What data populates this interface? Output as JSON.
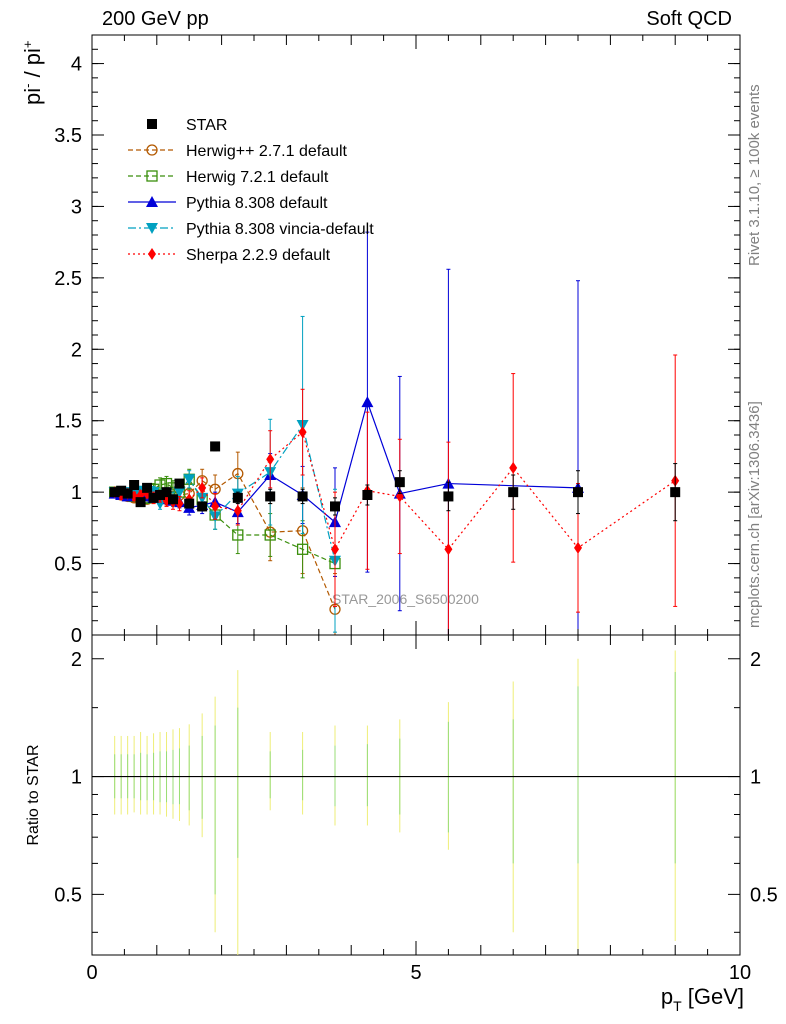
{
  "header": {
    "left": "200 GeV pp",
    "right": "Soft QCD"
  },
  "side_labels": {
    "rivet": "Rivet 3.1.10, ≥ 100k events",
    "mcplots": "mcplots.cern.ch [arXiv:1306.3436]"
  },
  "watermark": "STAR_2006_S6500200",
  "chart_data": [
    {
      "type": "scatter",
      "ylabel": "pi- / pi+",
      "xlim": [
        0,
        10
      ],
      "ylim": [
        0,
        4.2
      ],
      "yticks": [
        "0",
        "0.5",
        "1",
        "1.5",
        "2",
        "2.5",
        "3",
        "3.5",
        "4"
      ],
      "legend_position": "top-left",
      "series": [
        {
          "name": "STAR",
          "color": "#000000",
          "marker": "square-filled",
          "line": "none",
          "points": [
            [
              0.35,
              1.0
            ],
            [
              0.45,
              1.01
            ],
            [
              0.55,
              0.99
            ],
            [
              0.65,
              1.05
            ],
            [
              0.75,
              0.93
            ],
            [
              0.85,
              1.03
            ],
            [
              0.95,
              0.96
            ],
            [
              1.05,
              0.98
            ],
            [
              1.15,
              1.0
            ],
            [
              1.25,
              0.95
            ],
            [
              1.35,
              1.06
            ],
            [
              1.5,
              0.92
            ],
            [
              1.7,
              0.9
            ],
            [
              1.9,
              1.32
            ],
            [
              2.25,
              0.96
            ],
            [
              2.75,
              0.97
            ],
            [
              3.25,
              0.97
            ],
            [
              3.75,
              0.9
            ],
            [
              4.25,
              0.98
            ],
            [
              4.75,
              1.07
            ],
            [
              5.5,
              0.97
            ],
            [
              6.5,
              1.0
            ],
            [
              7.5,
              1.0
            ],
            [
              9.0,
              1.0
            ]
          ],
          "err": [
            0.02,
            0.02,
            0.02,
            0.02,
            0.02,
            0.02,
            0.02,
            0.02,
            0.02,
            0.02,
            0.02,
            0.03,
            0.03,
            0.03,
            0.04,
            0.05,
            0.05,
            0.06,
            0.07,
            0.08,
            0.1,
            0.12,
            0.15,
            0.2
          ]
        },
        {
          "name": "Herwig++ 2.7.1 default",
          "color": "#b35900",
          "marker": "circle-open",
          "line": "dashed",
          "points": [
            [
              0.35,
              1.0
            ],
            [
              0.45,
              0.98
            ],
            [
              0.55,
              0.97
            ],
            [
              0.65,
              0.96
            ],
            [
              0.75,
              0.98
            ],
            [
              0.85,
              0.95
            ],
            [
              0.95,
              0.96
            ],
            [
              1.05,
              0.97
            ],
            [
              1.15,
              0.96
            ],
            [
              1.25,
              0.97
            ],
            [
              1.35,
              0.98
            ],
            [
              1.5,
              0.99
            ],
            [
              1.7,
              1.08
            ],
            [
              1.9,
              1.02
            ],
            [
              2.25,
              1.13
            ],
            [
              2.75,
              0.72
            ],
            [
              3.25,
              0.73
            ],
            [
              3.75,
              0.18
            ]
          ],
          "err": [
            0.03,
            0.03,
            0.03,
            0.03,
            0.03,
            0.03,
            0.04,
            0.04,
            0.05,
            0.05,
            0.06,
            0.07,
            0.08,
            0.1,
            0.15,
            0.2,
            0.3,
            0.25
          ]
        },
        {
          "name": "Herwig 7.2.1 default",
          "color": "#3a8e0c",
          "marker": "square-open",
          "line": "dashed",
          "points": [
            [
              0.35,
              1.0
            ],
            [
              0.45,
              0.99
            ],
            [
              0.55,
              0.98
            ],
            [
              0.65,
              0.97
            ],
            [
              0.75,
              1.0
            ],
            [
              0.85,
              0.96
            ],
            [
              0.95,
              1.02
            ],
            [
              1.05,
              1.05
            ],
            [
              1.15,
              1.06
            ],
            [
              1.25,
              1.03
            ],
            [
              1.35,
              1.0
            ],
            [
              1.5,
              1.09
            ],
            [
              1.7,
              0.95
            ],
            [
              1.9,
              0.84
            ],
            [
              2.25,
              0.7
            ],
            [
              2.75,
              0.7
            ],
            [
              3.25,
              0.6
            ],
            [
              3.75,
              0.5
            ]
          ],
          "err": [
            0.03,
            0.03,
            0.03,
            0.03,
            0.03,
            0.04,
            0.04,
            0.05,
            0.05,
            0.05,
            0.06,
            0.07,
            0.08,
            0.1,
            0.13,
            0.15,
            0.2,
            0.3
          ]
        },
        {
          "name": "Pythia 8.308 default",
          "color": "#0000d8",
          "marker": "triangle-up-filled",
          "line": "solid",
          "points": [
            [
              0.35,
              0.99
            ],
            [
              0.45,
              0.98
            ],
            [
              0.55,
              0.97
            ],
            [
              0.65,
              0.98
            ],
            [
              0.75,
              0.99
            ],
            [
              0.85,
              0.97
            ],
            [
              0.95,
              0.96
            ],
            [
              1.05,
              0.97
            ],
            [
              1.15,
              0.95
            ],
            [
              1.25,
              0.94
            ],
            [
              1.35,
              0.93
            ],
            [
              1.5,
              0.89
            ],
            [
              1.7,
              0.91
            ],
            [
              1.9,
              0.93
            ],
            [
              2.25,
              0.86
            ],
            [
              2.75,
              1.12
            ],
            [
              3.25,
              0.98
            ],
            [
              3.75,
              0.79
            ],
            [
              4.25,
              1.63
            ],
            [
              4.75,
              0.99
            ],
            [
              5.5,
              1.06
            ],
            [
              7.5,
              1.03
            ]
          ],
          "err": [
            0.02,
            0.02,
            0.02,
            0.02,
            0.02,
            0.02,
            0.03,
            0.03,
            0.03,
            0.04,
            0.04,
            0.05,
            0.06,
            0.07,
            0.08,
            0.15,
            0.2,
            0.38,
            1.19,
            0.82,
            1.5,
            1.45
          ]
        },
        {
          "name": "Pythia 8.308 vincia-default",
          "color": "#00a0c0",
          "marker": "triangle-down-filled",
          "line": "dashdot",
          "points": [
            [
              0.35,
              1.0
            ],
            [
              0.45,
              0.99
            ],
            [
              0.55,
              1.0
            ],
            [
              0.65,
              0.98
            ],
            [
              0.75,
              1.01
            ],
            [
              0.85,
              0.99
            ],
            [
              0.95,
              1.0
            ],
            [
              1.05,
              0.92
            ],
            [
              1.15,
              0.99
            ],
            [
              1.25,
              0.95
            ],
            [
              1.35,
              1.0
            ],
            [
              1.5,
              1.09
            ],
            [
              1.7,
              0.96
            ],
            [
              1.9,
              0.83
            ],
            [
              2.25,
              0.99
            ],
            [
              2.75,
              1.14
            ],
            [
              3.25,
              1.47
            ],
            [
              3.75,
              0.52
            ]
          ],
          "err": [
            0.03,
            0.03,
            0.03,
            0.03,
            0.03,
            0.03,
            0.04,
            0.04,
            0.04,
            0.05,
            0.05,
            0.06,
            0.07,
            0.09,
            0.12,
            0.37,
            0.76,
            0.5
          ]
        },
        {
          "name": "Sherpa 2.2.9 default",
          "color": "#ff0000",
          "marker": "diamond-filled",
          "line": "dotted",
          "points": [
            [
              0.35,
              1.0
            ],
            [
              0.45,
              0.98
            ],
            [
              0.55,
              0.99
            ],
            [
              0.65,
              0.97
            ],
            [
              0.75,
              0.98
            ],
            [
              0.85,
              0.99
            ],
            [
              0.95,
              0.96
            ],
            [
              1.05,
              0.97
            ],
            [
              1.15,
              0.94
            ],
            [
              1.25,
              0.93
            ],
            [
              1.35,
              0.92
            ],
            [
              1.5,
              0.95
            ],
            [
              1.7,
              1.03
            ],
            [
              1.9,
              0.9
            ],
            [
              2.25,
              0.87
            ],
            [
              2.75,
              1.23
            ],
            [
              3.25,
              1.42
            ],
            [
              3.75,
              0.6
            ],
            [
              4.25,
              1.01
            ],
            [
              4.75,
              0.97
            ],
            [
              5.5,
              0.6
            ],
            [
              6.5,
              1.17
            ],
            [
              7.5,
              0.61
            ],
            [
              9.0,
              1.08
            ]
          ],
          "err": [
            0.03,
            0.03,
            0.03,
            0.03,
            0.03,
            0.03,
            0.04,
            0.04,
            0.04,
            0.05,
            0.05,
            0.06,
            0.07,
            0.09,
            0.1,
            0.2,
            0.3,
            0.4,
            0.55,
            0.4,
            0.75,
            0.66,
            0.45,
            0.88
          ]
        }
      ]
    },
    {
      "type": "scatter",
      "ylabel": "Ratio to STAR",
      "xlabel": "p_T [GeV]",
      "xlim": [
        0,
        10
      ],
      "xticks": [
        "0",
        "5",
        "10"
      ],
      "ylim": [
        0.35,
        2.3
      ],
      "yscale": "log",
      "yticks": [
        "0.5",
        "1",
        "2"
      ],
      "reference_line": 1,
      "bands": {
        "x": [
          0.35,
          0.45,
          0.55,
          0.65,
          0.75,
          0.85,
          0.95,
          1.05,
          1.15,
          1.25,
          1.35,
          1.5,
          1.7,
          1.9,
          2.25,
          2.75,
          3.25,
          3.75,
          4.25,
          4.75,
          5.5,
          6.5,
          7.5,
          9.0
        ],
        "yellow": [
          [
            0.8,
            1.27
          ],
          [
            0.8,
            1.27
          ],
          [
            0.8,
            1.27
          ],
          [
            0.81,
            1.27
          ],
          [
            0.8,
            1.3
          ],
          [
            0.8,
            1.27
          ],
          [
            0.8,
            1.29
          ],
          [
            0.8,
            1.3
          ],
          [
            0.79,
            1.3
          ],
          [
            0.78,
            1.32
          ],
          [
            0.77,
            1.33
          ],
          [
            0.75,
            1.36
          ],
          [
            0.7,
            1.45
          ],
          [
            0.4,
            1.6
          ],
          [
            0.35,
            1.87
          ],
          [
            0.82,
            1.3
          ],
          [
            0.8,
            1.3
          ],
          [
            0.75,
            1.35
          ],
          [
            0.75,
            1.35
          ],
          [
            0.72,
            1.4
          ],
          [
            0.65,
            1.55
          ],
          [
            0.4,
            1.75
          ],
          [
            0.35,
            2.0
          ],
          [
            0.38,
            2.1
          ]
        ],
        "green": [
          [
            0.88,
            1.14
          ],
          [
            0.88,
            1.14
          ],
          [
            0.88,
            1.14
          ],
          [
            0.88,
            1.14
          ],
          [
            0.87,
            1.15
          ],
          [
            0.87,
            1.14
          ],
          [
            0.87,
            1.15
          ],
          [
            0.86,
            1.16
          ],
          [
            0.86,
            1.16
          ],
          [
            0.85,
            1.17
          ],
          [
            0.85,
            1.18
          ],
          [
            0.82,
            1.2
          ],
          [
            0.78,
            1.27
          ],
          [
            0.5,
            1.35
          ],
          [
            0.62,
            1.5
          ],
          [
            0.88,
            1.16
          ],
          [
            0.87,
            1.17
          ],
          [
            0.84,
            1.2
          ],
          [
            0.84,
            1.21
          ],
          [
            0.8,
            1.25
          ],
          [
            0.72,
            1.38
          ],
          [
            0.6,
            1.4
          ],
          [
            0.6,
            1.7
          ],
          [
            0.6,
            1.85
          ]
        ]
      }
    }
  ]
}
